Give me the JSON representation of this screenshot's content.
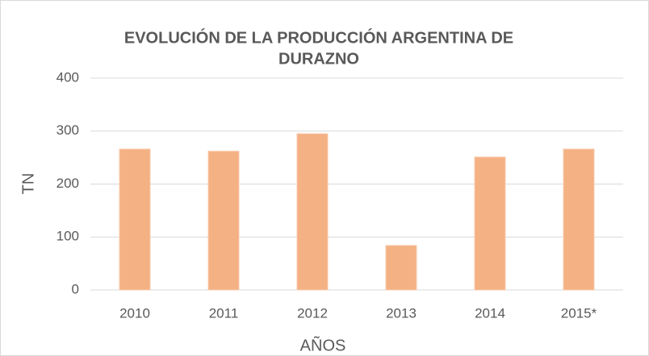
{
  "chart_data": {
    "type": "bar",
    "title": [
      "EVOLUCIÓN DE LA PRODUCCIÓN ARGENTINA DE",
      "DURAZNO"
    ],
    "x_label": "AÑOS",
    "y_label": "TN",
    "categories": [
      "2010",
      "2011",
      "2012",
      "2013",
      "2014",
      "2015*"
    ],
    "values": [
      266,
      262,
      295,
      84,
      251,
      266
    ],
    "color": "#f4b183",
    "ylim": [
      0,
      400
    ],
    "yticks": [
      0,
      100,
      200,
      300,
      400
    ],
    "grid": true
  }
}
